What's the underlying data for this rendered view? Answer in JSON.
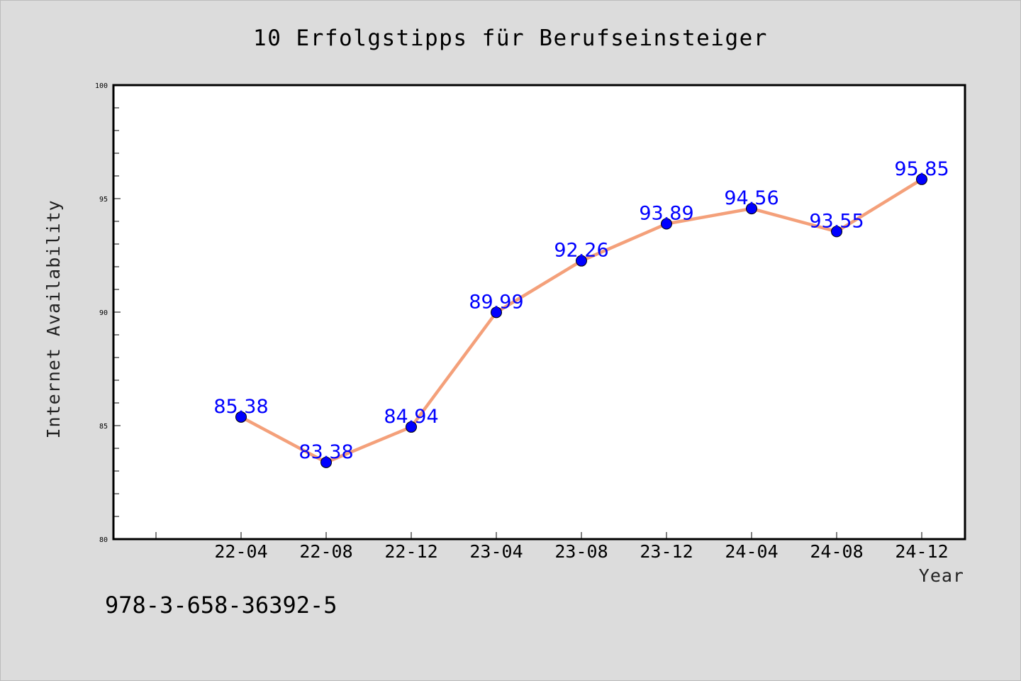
{
  "chart_data": {
    "type": "line",
    "title": "10 Erfolgstipps für Berufseinsteiger",
    "xlabel": "Year",
    "ylabel": "Internet Availability",
    "categories": [
      "22-04",
      "22-08",
      "22-12",
      "23-04",
      "23-08",
      "23-12",
      "24-04",
      "24-08",
      "24-12"
    ],
    "series": [
      {
        "values": [
          85.38,
          83.38,
          84.94,
          89.99,
          92.26,
          93.89,
          94.56,
          93.55,
          95.85
        ],
        "data_labels": [
          "85.38",
          "83.38",
          "84.94",
          "89.99",
          "92.26",
          "93.89",
          "94.56",
          "93.55",
          "95.85"
        ]
      }
    ],
    "ylim": [
      80,
      100
    ],
    "yticks": [
      80,
      85,
      90,
      95,
      100
    ],
    "line_color": "#f4a07a",
    "marker_color": "#0000ff",
    "data_label_color": "#0000ff",
    "background_color": "#dcdcdc",
    "plot_background": "#ffffff",
    "grid": false,
    "legend": "none"
  },
  "footer": {
    "text": "978-3-658-36392-5"
  }
}
